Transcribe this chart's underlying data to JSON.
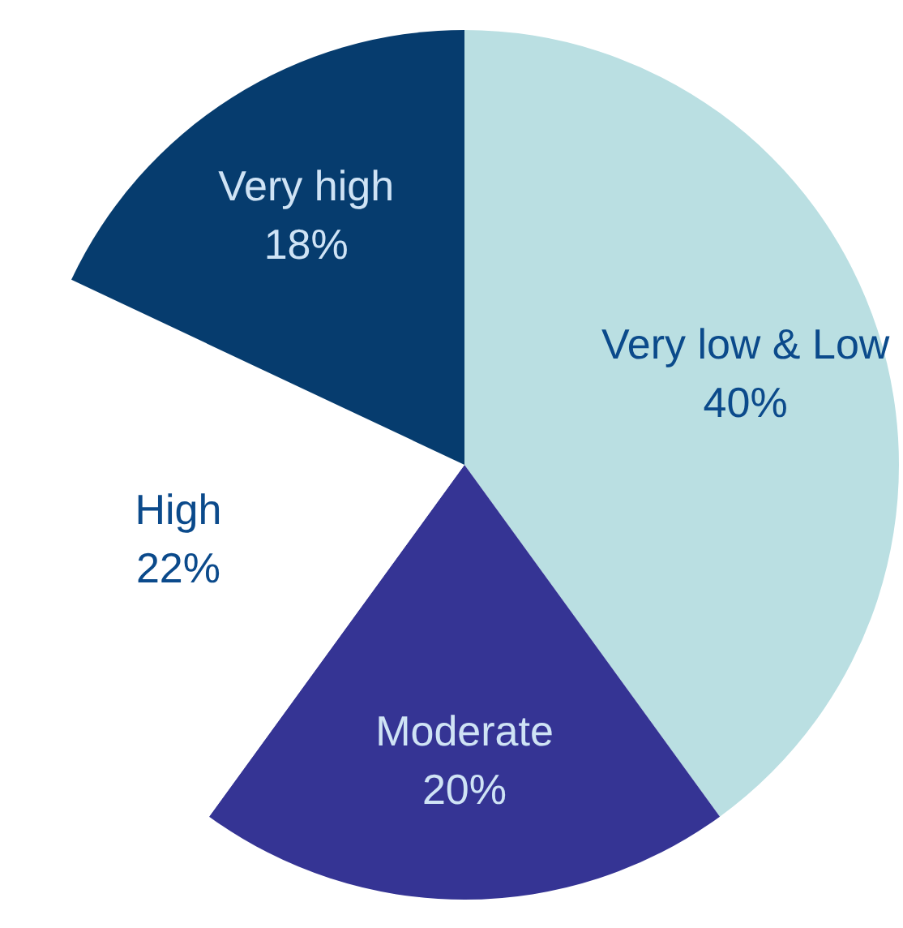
{
  "chart_data": {
    "type": "pie",
    "categories": [
      "Very low & Low",
      "Moderate",
      "High",
      "Very high"
    ],
    "values": [
      40,
      20,
      22,
      18
    ],
    "colors": [
      "#badfe2",
      "#353494",
      "#ffffff",
      "#063c6e"
    ],
    "value_labels": [
      "40%",
      "20%",
      "22%",
      "18%"
    ]
  }
}
